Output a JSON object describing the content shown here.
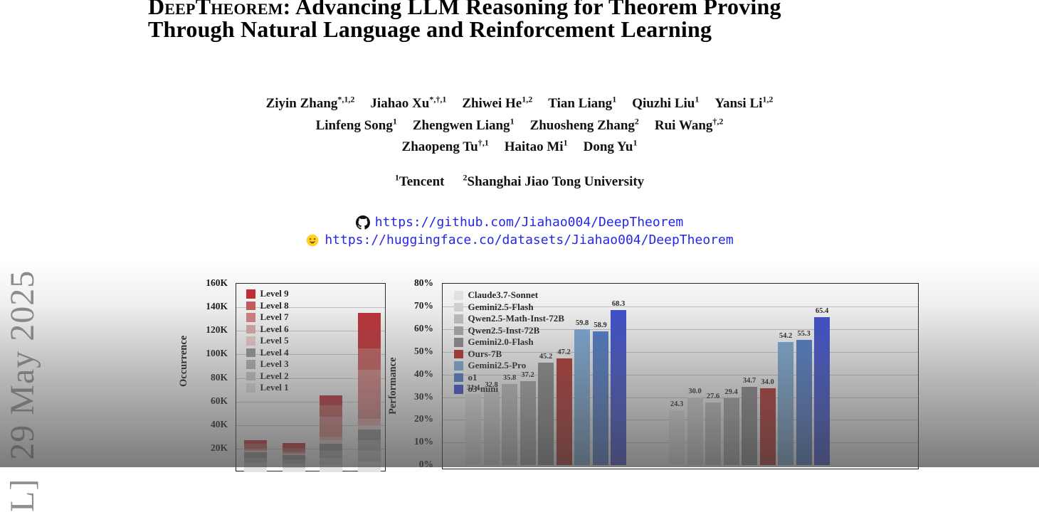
{
  "arxiv_sidebar": {
    "text": "L]  29 May 2025"
  },
  "title": {
    "smallcaps": "DeepTheorem:",
    "line1_rest": " Advancing LLM Reasoning for Theorem Proving",
    "line2": "Through Natural Language and Reinforcement Learning"
  },
  "authors": {
    "lines": [
      [
        {
          "name": "Ziyin Zhang",
          "sup": "*,1,2"
        },
        {
          "name": "Jiahao Xu",
          "sup": "*,†,1"
        },
        {
          "name": "Zhiwei He",
          "sup": "1,2"
        },
        {
          "name": "Tian Liang",
          "sup": "1"
        },
        {
          "name": "Qiuzhi Liu",
          "sup": "1"
        },
        {
          "name": "Yansi Li",
          "sup": "1,2"
        }
      ],
      [
        {
          "name": "Linfeng Song",
          "sup": "1"
        },
        {
          "name": "Zhengwen Liang",
          "sup": "1"
        },
        {
          "name": "Zhuosheng Zhang",
          "sup": "2"
        },
        {
          "name": "Rui Wang",
          "sup": "†,2"
        }
      ],
      [
        {
          "name": "Zhaopeng Tu",
          "sup": "†,1"
        },
        {
          "name": "Haitao Mi",
          "sup": "1"
        },
        {
          "name": "Dong Yu",
          "sup": "1"
        }
      ]
    ]
  },
  "affiliations": [
    {
      "sup": "1",
      "name": "Tencent"
    },
    {
      "sup": "2",
      "name": "Shanghai Jiao Tong University"
    }
  ],
  "links": [
    {
      "icon": "github-icon",
      "url": "https://github.com/Jiahao004/DeepTheorem"
    },
    {
      "icon": "huggingface-icon",
      "url": "https://huggingface.co/datasets/Jiahao004/DeepTheorem"
    }
  ],
  "chart_data": [
    {
      "type": "bar",
      "stacked": true,
      "title": "",
      "xlabel": "",
      "ylabel": "Occurrence",
      "ylim": [
        0,
        160000
      ],
      "grid": true,
      "legend_position": "top-left",
      "yticks": [
        {
          "v": 160,
          "label": "160K"
        },
        {
          "v": 140,
          "label": "140K"
        },
        {
          "v": 120,
          "label": "120K"
        },
        {
          "v": 100,
          "label": "100K"
        },
        {
          "v": 80,
          "label": "80K"
        },
        {
          "v": 60,
          "label": "60K"
        },
        {
          "v": 40,
          "label": "40K"
        },
        {
          "v": 20,
          "label": "20K"
        }
      ],
      "legend": [
        {
          "label": "Level 9",
          "color": "#c1272d"
        },
        {
          "label": "Level 8",
          "color": "#cc5555"
        },
        {
          "label": "Level 7",
          "color": "#d98080"
        },
        {
          "label": "Level 6",
          "color": "#e5abab"
        },
        {
          "label": "Level 5",
          "color": "#f0d0d0"
        },
        {
          "label": "Level 4",
          "color": "#959595"
        },
        {
          "label": "Level 3",
          "color": "#b3b3b3"
        },
        {
          "label": "Level 2",
          "color": "#cdcdcd"
        },
        {
          "label": "Level 1",
          "color": "#e4e4e4"
        }
      ],
      "categories": [
        "",
        "",
        "",
        ""
      ],
      "note": "x-axis labels cut off at bottom edge of screenshot; segment breakdown estimated from gridlines, units = thousands of occurrences, stacked bottom-to-top Level 1 → Level 9",
      "bars": [
        {
          "total_k": 27,
          "segments_k": [
            4,
            4,
            4,
            5,
            1,
            1,
            1,
            4,
            3
          ]
        },
        {
          "total_k": 25,
          "segments_k": [
            3.5,
            3.5,
            3.5,
            4,
            1,
            1,
            1,
            3,
            4.5
          ]
        },
        {
          "total_k": 65,
          "segments_k": [
            6,
            6,
            6,
            6,
            3,
            3,
            17,
            10,
            8
          ]
        },
        {
          "total_k": 135,
          "segments_k": [
            9,
            9,
            9,
            9,
            4,
            5,
            42,
            18,
            30
          ]
        }
      ]
    },
    {
      "type": "bar",
      "stacked": false,
      "title": "",
      "xlabel": "",
      "ylabel": "Performance",
      "ylim": [
        0,
        80
      ],
      "grid": true,
      "legend_position": "top-left",
      "yticks": [
        {
          "v": 80,
          "label": "80%"
        },
        {
          "v": 70,
          "label": "70%"
        },
        {
          "v": 60,
          "label": "60%"
        },
        {
          "v": 50,
          "label": "50%"
        },
        {
          "v": 40,
          "label": "40%"
        },
        {
          "v": 30,
          "label": "30%"
        },
        {
          "v": 20,
          "label": "20%"
        },
        {
          "v": 10,
          "label": "10%"
        },
        {
          "v": 0,
          "label": "0%"
        }
      ],
      "categories": [
        "",
        ""
      ],
      "note": "two benchmark groups; x-axis group labels cut off at bottom edge of screenshot",
      "series": [
        {
          "name": "Claude3.7-Sonnet",
          "color": "#ececec",
          "values": [
            31.4,
            24.3
          ],
          "labels": [
            "31.4",
            "24.3"
          ]
        },
        {
          "name": "Gemini2.5-Flash",
          "color": "#dcdcdc",
          "values": [
            32.8,
            30.0
          ],
          "labels": [
            "32.8",
            "30.0"
          ]
        },
        {
          "name": "Qwen2.5-Math-Inst-72B",
          "color": "#c6c6c6",
          "values": [
            35.8,
            27.6
          ],
          "labels": [
            "35.8",
            "27.6"
          ]
        },
        {
          "name": "Qwen2.5-Inst-72B",
          "color": "#a9a9a9",
          "values": [
            37.2,
            29.4
          ],
          "labels": [
            "37.2",
            "29.4"
          ]
        },
        {
          "name": "Gemini2.0-Flash",
          "color": "#8a8a8a",
          "values": [
            45.2,
            34.7
          ],
          "labels": [
            "45.2",
            "34.7"
          ]
        },
        {
          "name": "Ours-7B",
          "color": "#b42521",
          "values": [
            47.2,
            34.0
          ],
          "labels": [
            "47.2",
            "34.0"
          ]
        },
        {
          "name": "Gemini2.5-Pro",
          "color": "#78aadc",
          "values": [
            59.8,
            54.2
          ],
          "labels": [
            "59.8",
            "54.2"
          ]
        },
        {
          "name": "o1",
          "color": "#4677cd",
          "values": [
            58.9,
            55.3
          ],
          "labels": [
            "58.9",
            "55.3"
          ]
        },
        {
          "name": "o3-mini",
          "color": "#3448d2",
          "values": [
            68.3,
            65.4
          ],
          "labels": [
            "68.3",
            "65.4"
          ]
        }
      ]
    }
  ]
}
